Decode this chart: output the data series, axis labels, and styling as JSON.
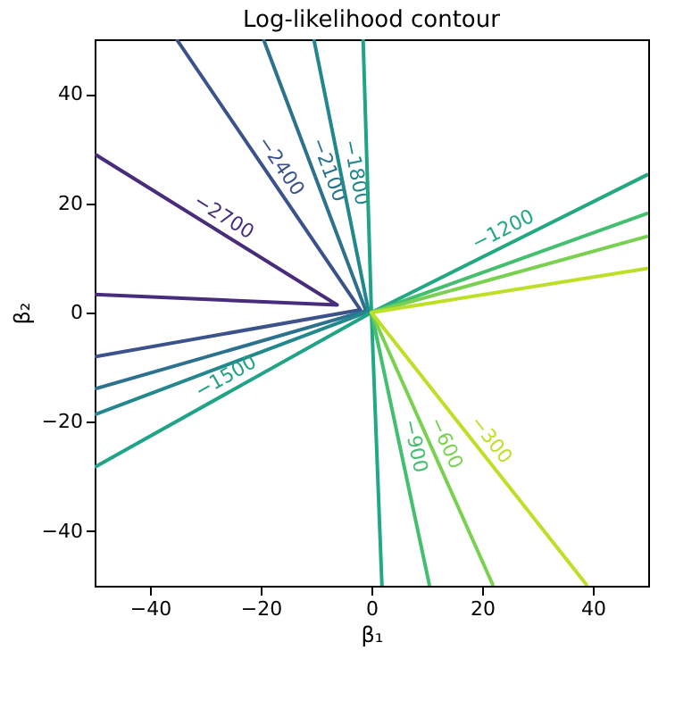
{
  "chart_data": {
    "type": "line",
    "title": "Log-likelihood contour",
    "xlabel": "β₁",
    "ylabel": "β₂",
    "xlim": [
      -50,
      50
    ],
    "ylim": [
      -50,
      50
    ],
    "xticks": [
      -40,
      -20,
      0,
      20,
      40
    ],
    "yticks": [
      -40,
      -20,
      0,
      20,
      40
    ],
    "grid": false,
    "legend": false,
    "marker": "none",
    "line_style": "solid",
    "series": [
      {
        "name": "−2700",
        "color": "#472d7b",
        "x": [
          -50,
          -6.2,
          -50
        ],
        "values": [
          29,
          1.4,
          3.3
        ]
      },
      {
        "name": "−2400",
        "color": "#3b528b",
        "x": [
          -35.2,
          -2,
          -50
        ],
        "values": [
          50,
          0.5,
          -8.1
        ]
      },
      {
        "name": "−2100",
        "color": "#2c728e",
        "x": [
          -19.5,
          -1,
          -50
        ],
        "values": [
          50,
          0.3,
          -14
        ]
      },
      {
        "name": "−1800",
        "color": "#23888e",
        "x": [
          -10.4,
          -0.5,
          -50
        ],
        "values": [
          50,
          0.2,
          -18.7
        ]
      },
      {
        "name": "−1500",
        "color": "#20a386",
        "x": [
          -50,
          0,
          -1.5
        ],
        "values": [
          -28.3,
          0,
          50
        ]
      },
      {
        "name": "−1200",
        "color": "#22a884",
        "x": [
          50,
          0,
          1.9
        ],
        "values": [
          25.3,
          0,
          -50
        ]
      },
      {
        "name": "−900",
        "color": "#44bf70",
        "x": [
          10.5,
          0,
          50
        ],
        "values": [
          -50,
          0,
          18.2
        ]
      },
      {
        "name": "−600",
        "color": "#7ad151",
        "x": [
          22,
          0,
          50
        ],
        "values": [
          -50,
          0,
          14
        ]
      },
      {
        "name": "−300",
        "color": "#bddf26",
        "x": [
          39,
          0,
          50
        ],
        "values": [
          -50,
          0,
          8.1
        ]
      }
    ]
  }
}
